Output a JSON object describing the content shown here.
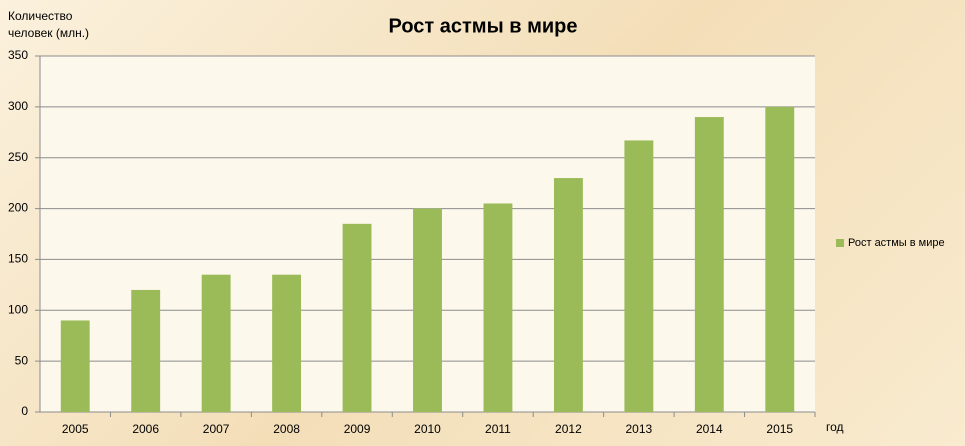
{
  "chart_data": {
    "type": "bar",
    "title": "Рост астмы в мире",
    "y_label": "Количество человек (млн.)",
    "x_label": "год",
    "categories": [
      "2005",
      "2006",
      "2007",
      "2008",
      "2009",
      "2010",
      "2011",
      "2012",
      "2013",
      "2014",
      "2015"
    ],
    "series": [
      {
        "name": "Рост астмы в мире",
        "color": "#9bbb59",
        "values": [
          90,
          120,
          135,
          135,
          185,
          200,
          205,
          230,
          267,
          290,
          300
        ]
      }
    ],
    "ylim": [
      0,
      350
    ],
    "yticks": [
      0,
      50,
      100,
      150,
      200,
      250,
      300,
      350
    ],
    "grid": true,
    "legend": "right"
  }
}
